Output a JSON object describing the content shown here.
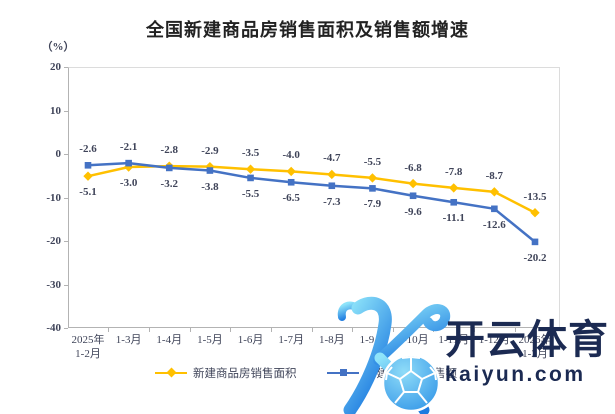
{
  "title": "全国新建商品房销售面积及销售额增速",
  "y_axis_unit": "（%）",
  "chart_data": {
    "type": "line",
    "title": "全国新建商品房销售面积及销售额增速",
    "categories": [
      {
        "l1": "2025年",
        "l2": "1-2月"
      },
      {
        "l1": "1-3月"
      },
      {
        "l1": "1-4月"
      },
      {
        "l1": "1-5月"
      },
      {
        "l1": "1-6月"
      },
      {
        "l1": "1-7月"
      },
      {
        "l1": "1-8月"
      },
      {
        "l1": "1-9月"
      },
      {
        "l1": "1-10月"
      },
      {
        "l1": "1-11月"
      },
      {
        "l1": "1-12月"
      },
      {
        "l1": "2026年",
        "l2": "1-2月"
      }
    ],
    "series": [
      {
        "name": "新建商品房销售面积",
        "marker": "diamond",
        "color": "#FFC000",
        "values": [
          -5.1,
          -3.0,
          -2.8,
          -2.9,
          -3.5,
          -4.0,
          -4.7,
          -5.5,
          -6.8,
          -7.8,
          -8.7,
          -13.5
        ]
      },
      {
        "name": "新建商品房销售额",
        "marker": "square",
        "color": "#4472C4",
        "values": [
          -2.6,
          -2.1,
          -3.2,
          -3.8,
          -5.5,
          -6.5,
          -7.3,
          -7.9,
          -9.6,
          -11.1,
          -12.6,
          -20.2
        ]
      }
    ],
    "ylabel": "（%）",
    "ylim": [
      -40,
      20
    ],
    "y_ticks": [
      20,
      10,
      0,
      -10,
      -20,
      -30,
      -40
    ],
    "grid": false,
    "legend_position": "bottom"
  },
  "watermark": {
    "brand_cn": "开云体育",
    "brand_url": "kaiyun.com",
    "logo": "kaiyun-k-soccer-logo",
    "text_color": "#1b2a52",
    "logo_gradient": [
      "#8EE4FA",
      "#1E7BE0"
    ]
  }
}
